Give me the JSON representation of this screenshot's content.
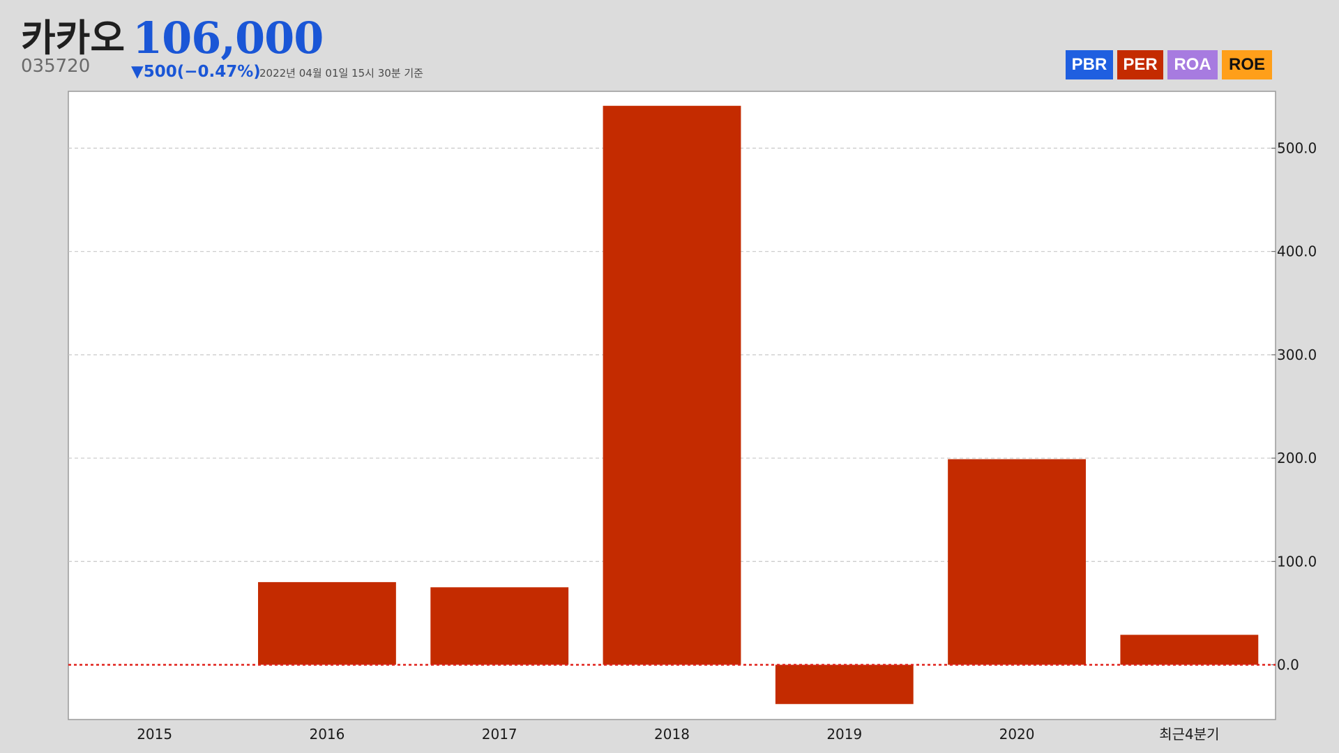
{
  "header": {
    "name": "카카오",
    "price": "106,000",
    "code": "035720",
    "change": "▼500(−0.47%)",
    "timestamp": "2022년 04월 01일 15시 30분 기준"
  },
  "legend": {
    "pbr": "PBR",
    "per": "PER",
    "roa": "ROA",
    "roe": "ROE"
  },
  "colors": {
    "background": "#dcdcdc",
    "price": "#1a56d6",
    "bar": "#c42b00",
    "zero_line": "#e0201a",
    "pbr": "#1f5fe0",
    "per": "#c42b00",
    "roa": "#a77be0",
    "roe": "#ff9f1a"
  },
  "chart_data": {
    "type": "bar",
    "title": "",
    "xlabel": "",
    "ylabel": "",
    "active_metric": "PER",
    "categories": [
      "2015",
      "2016",
      "2017",
      "2018",
      "2019",
      "2020",
      "최근4분기"
    ],
    "series": [
      {
        "values": [
          null,
          80,
          75,
          541,
          -38,
          199,
          29
        ]
      }
    ],
    "ylim": [
      -53,
      555
    ],
    "yticks": [
      0,
      100,
      200,
      300,
      400,
      500
    ],
    "ytick_labels": [
      "0.0",
      "100.0",
      "200.0",
      "300.0",
      "400.0",
      "500.0"
    ],
    "y_axis_position": "right",
    "grid": true,
    "zero_line": "dotted red"
  }
}
